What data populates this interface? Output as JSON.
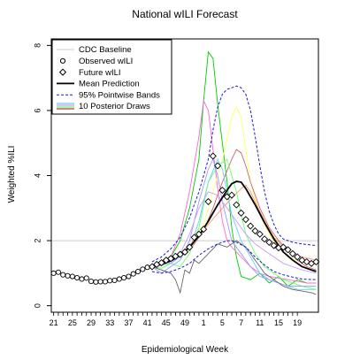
{
  "chart_data": {
    "type": "line",
    "title": "National wILI Forecast",
    "xlabel": "Epidemiological Week",
    "ylabel": "Weighted %ILI",
    "ylim": [
      0,
      8
    ],
    "yticks": [
      0,
      2,
      4,
      6,
      8
    ],
    "xtick_labels": [
      "21",
      "25",
      "29",
      "33",
      "37",
      "41",
      "45",
      "49",
      "1",
      "5",
      "7",
      "11",
      "15",
      "19"
    ],
    "xlim_index": [
      -0.5,
      52.5
    ],
    "baseline": 2.0,
    "legend": {
      "position": "top-left",
      "entries": [
        {
          "label": "CDC Baseline",
          "key": "baseline",
          "color": "#cccccc"
        },
        {
          "label": "Observed wILI",
          "key": "observed",
          "color": "#000000"
        },
        {
          "label": "Future wILI",
          "key": "future",
          "color": "#000000"
        },
        {
          "label": "Mean Prediction",
          "key": "mean",
          "color": "#000000"
        },
        {
          "label": "95% Pointwise Bands",
          "key": "bands",
          "color": "#0000cc"
        },
        {
          "label": "10 Posterior Draws",
          "key": "draws",
          "color": "#cc3333"
        }
      ]
    },
    "observed_wili": [
      [
        0,
        1.0
      ],
      [
        1,
        1.03
      ],
      [
        2,
        0.95
      ],
      [
        3,
        0.92
      ],
      [
        4,
        0.9
      ],
      [
        5,
        0.86
      ],
      [
        6,
        0.82
      ],
      [
        7,
        0.85
      ],
      [
        8,
        0.75
      ],
      [
        9,
        0.73
      ],
      [
        10,
        0.74
      ],
      [
        11,
        0.74
      ],
      [
        12,
        0.77
      ],
      [
        13,
        0.78
      ],
      [
        14,
        0.82
      ],
      [
        15,
        0.86
      ],
      [
        16,
        0.9
      ],
      [
        17,
        0.98
      ],
      [
        18,
        1.05
      ],
      [
        19,
        1.12
      ],
      [
        20,
        1.18
      ]
    ],
    "future_wili": [
      [
        21,
        1.2
      ],
      [
        22,
        1.27
      ],
      [
        23,
        1.32
      ],
      [
        24,
        1.4
      ],
      [
        25,
        1.45
      ],
      [
        26,
        1.52
      ],
      [
        27,
        1.58
      ],
      [
        28,
        1.65
      ],
      [
        29,
        1.8
      ],
      [
        30,
        2.1
      ],
      [
        31,
        2.2
      ],
      [
        32,
        2.35
      ],
      [
        33,
        3.2
      ],
      [
        34,
        4.6
      ],
      [
        35,
        4.3
      ],
      [
        36,
        3.55
      ],
      [
        37,
        3.35
      ],
      [
        38,
        3.4
      ],
      [
        39,
        3.1
      ],
      [
        40,
        2.85
      ],
      [
        41,
        2.65
      ],
      [
        42,
        2.45
      ],
      [
        43,
        2.3
      ],
      [
        44,
        2.2
      ],
      [
        45,
        2.05
      ],
      [
        46,
        1.95
      ],
      [
        47,
        1.85
      ],
      [
        48,
        1.78
      ],
      [
        49,
        1.8
      ],
      [
        50,
        1.72
      ],
      [
        51,
        1.6
      ],
      [
        52,
        1.5
      ],
      [
        53,
        1.4
      ],
      [
        54,
        1.35
      ],
      [
        55,
        1.3
      ],
      [
        56,
        1.35
      ]
    ],
    "mean_prediction": [
      [
        21,
        1.2
      ],
      [
        23,
        1.27
      ],
      [
        25,
        1.38
      ],
      [
        27,
        1.55
      ],
      [
        29,
        1.8
      ],
      [
        31,
        2.15
      ],
      [
        33,
        2.6
      ],
      [
        35,
        3.1
      ],
      [
        37,
        3.55
      ],
      [
        38,
        3.75
      ],
      [
        39,
        3.82
      ],
      [
        40,
        3.8
      ],
      [
        41,
        3.6
      ],
      [
        43,
        3.1
      ],
      [
        45,
        2.55
      ],
      [
        47,
        2.05
      ],
      [
        49,
        1.65
      ],
      [
        51,
        1.4
      ],
      [
        53,
        1.2
      ],
      [
        55,
        1.1
      ],
      [
        56,
        1.05
      ]
    ],
    "band_upper": [
      [
        21,
        1.35
      ],
      [
        23,
        1.5
      ],
      [
        25,
        1.75
      ],
      [
        27,
        2.1
      ],
      [
        29,
        2.7
      ],
      [
        31,
        3.5
      ],
      [
        33,
        4.5
      ],
      [
        34,
        5.4
      ],
      [
        35,
        6.1
      ],
      [
        36,
        6.5
      ],
      [
        37,
        6.65
      ],
      [
        38,
        6.7
      ],
      [
        39,
        6.75
      ],
      [
        40,
        6.7
      ],
      [
        41,
        6.5
      ],
      [
        42,
        6.0
      ],
      [
        43,
        5.2
      ],
      [
        44,
        4.3
      ],
      [
        45,
        3.5
      ],
      [
        46,
        2.9
      ],
      [
        47,
        2.5
      ],
      [
        48,
        2.2
      ],
      [
        49,
        2.05
      ],
      [
        51,
        1.95
      ],
      [
        53,
        1.9
      ],
      [
        56,
        1.85
      ]
    ],
    "band_lower": [
      [
        21,
        1.05
      ],
      [
        23,
        1.0
      ],
      [
        25,
        1.05
      ],
      [
        27,
        1.15
      ],
      [
        29,
        1.3
      ],
      [
        31,
        1.55
      ],
      [
        33,
        1.75
      ],
      [
        35,
        1.9
      ],
      [
        37,
        2.0
      ],
      [
        38,
        2.0
      ],
      [
        39,
        1.95
      ],
      [
        41,
        1.8
      ],
      [
        43,
        1.5
      ],
      [
        45,
        1.25
      ],
      [
        47,
        1.05
      ],
      [
        49,
        0.95
      ],
      [
        51,
        0.88
      ],
      [
        53,
        0.82
      ],
      [
        56,
        0.8
      ]
    ],
    "series": [
      {
        "name": "",
        "color": "#00cc00",
        "values": [
          [
            21,
            1.2
          ],
          [
            23,
            1.3
          ],
          [
            25,
            1.5
          ],
          [
            27,
            2.0
          ],
          [
            29,
            3.0
          ],
          [
            31,
            4.5
          ],
          [
            32,
            6.3
          ],
          [
            33,
            7.8
          ],
          [
            34,
            7.6
          ],
          [
            35,
            6.2
          ],
          [
            36,
            5.0
          ],
          [
            37,
            3.8
          ],
          [
            38,
            2.4
          ],
          [
            39,
            1.5
          ],
          [
            40,
            0.9
          ],
          [
            42,
            0.8
          ],
          [
            44,
            1.0
          ],
          [
            46,
            0.7
          ],
          [
            48,
            0.9
          ],
          [
            50,
            0.6
          ],
          [
            52,
            0.8
          ],
          [
            54,
            0.7
          ],
          [
            56,
            0.7
          ]
        ]
      },
      {
        "name": "",
        "color": "#ff66cc",
        "values": [
          [
            21,
            1.2
          ],
          [
            23,
            1.3
          ],
          [
            25,
            1.5
          ],
          [
            27,
            2.2
          ],
          [
            29,
            3.5
          ],
          [
            31,
            5.2
          ],
          [
            32,
            6.3
          ],
          [
            33,
            6.0
          ],
          [
            34,
            4.8
          ],
          [
            35,
            3.6
          ],
          [
            36,
            2.6
          ],
          [
            37,
            2.0
          ],
          [
            38,
            1.8
          ],
          [
            40,
            1.5
          ],
          [
            42,
            1.2
          ],
          [
            44,
            1.0
          ],
          [
            46,
            0.9
          ],
          [
            48,
            0.85
          ],
          [
            50,
            0.8
          ],
          [
            52,
            0.75
          ],
          [
            54,
            0.7
          ],
          [
            56,
            0.7
          ]
        ]
      },
      {
        "name": "",
        "color": "#ffff66",
        "values": [
          [
            21,
            1.2
          ],
          [
            25,
            1.4
          ],
          [
            29,
            1.8
          ],
          [
            32,
            2.5
          ],
          [
            34,
            3.5
          ],
          [
            36,
            4.5
          ],
          [
            38,
            5.8
          ],
          [
            39,
            6.1
          ],
          [
            40,
            5.8
          ],
          [
            41,
            4.8
          ],
          [
            42,
            3.8
          ],
          [
            44,
            2.8
          ],
          [
            46,
            2.2
          ],
          [
            48,
            1.8
          ],
          [
            50,
            1.5
          ],
          [
            52,
            1.4
          ],
          [
            54,
            1.3
          ],
          [
            56,
            1.3
          ]
        ]
      },
      {
        "name": "",
        "color": "#cc6666",
        "values": [
          [
            21,
            1.2
          ],
          [
            25,
            1.4
          ],
          [
            29,
            1.7
          ],
          [
            32,
            2.3
          ],
          [
            34,
            3.0
          ],
          [
            36,
            3.8
          ],
          [
            38,
            4.5
          ],
          [
            39,
            4.8
          ],
          [
            40,
            4.7
          ],
          [
            41,
            4.3
          ],
          [
            42,
            3.8
          ],
          [
            44,
            3.0
          ],
          [
            46,
            2.4
          ],
          [
            48,
            2.0
          ],
          [
            50,
            1.7
          ],
          [
            52,
            1.4
          ],
          [
            54,
            1.2
          ],
          [
            56,
            1.1
          ]
        ]
      },
      {
        "name": "",
        "color": "#66ccff",
        "values": [
          [
            21,
            1.2
          ],
          [
            25,
            1.3
          ],
          [
            29,
            1.7
          ],
          [
            31,
            2.6
          ],
          [
            33,
            3.8
          ],
          [
            35,
            4.5
          ],
          [
            36,
            4.2
          ],
          [
            37,
            3.5
          ],
          [
            38,
            2.8
          ],
          [
            40,
            2.0
          ],
          [
            42,
            1.5
          ],
          [
            44,
            1.0
          ],
          [
            46,
            0.8
          ],
          [
            48,
            0.7
          ],
          [
            50,
            0.6
          ],
          [
            52,
            0.5
          ],
          [
            54,
            0.5
          ],
          [
            56,
            0.5
          ]
        ]
      },
      {
        "name": "",
        "color": "#66ff66",
        "values": [
          [
            21,
            1.2
          ],
          [
            23,
            1.15
          ],
          [
            25,
            1.3
          ],
          [
            27,
            1.2
          ],
          [
            29,
            1.6
          ],
          [
            31,
            2.4
          ],
          [
            33,
            3.8
          ],
          [
            35,
            4.3
          ],
          [
            37,
            4.5
          ],
          [
            38,
            4.0
          ],
          [
            39,
            3.5
          ],
          [
            40,
            2.8
          ],
          [
            41,
            2.2
          ],
          [
            43,
            1.6
          ],
          [
            45,
            1.2
          ],
          [
            47,
            1.0
          ],
          [
            49,
            0.8
          ],
          [
            51,
            0.7
          ],
          [
            53,
            0.6
          ],
          [
            56,
            0.5
          ]
        ]
      },
      {
        "name": "",
        "color": "#9999ff",
        "values": [
          [
            21,
            1.2
          ],
          [
            23,
            1.0
          ],
          [
            25,
            1.2
          ],
          [
            27,
            1.4
          ],
          [
            29,
            2.0
          ],
          [
            31,
            3.2
          ],
          [
            33,
            4.2
          ],
          [
            34,
            4.5
          ],
          [
            35,
            4.0
          ],
          [
            36,
            3.2
          ],
          [
            37,
            2.6
          ],
          [
            38,
            2.0
          ],
          [
            40,
            1.6
          ],
          [
            42,
            1.2
          ],
          [
            44,
            0.9
          ],
          [
            46,
            0.8
          ],
          [
            48,
            0.7
          ],
          [
            50,
            0.6
          ],
          [
            52,
            0.6
          ],
          [
            56,
            0.6
          ]
        ]
      },
      {
        "name": "",
        "color": "#ff9966",
        "values": [
          [
            21,
            1.2
          ],
          [
            24,
            1.3
          ],
          [
            27,
            1.6
          ],
          [
            30,
            2.0
          ],
          [
            33,
            2.5
          ],
          [
            36,
            3.0
          ],
          [
            38,
            3.3
          ],
          [
            40,
            3.6
          ],
          [
            41,
            3.7
          ],
          [
            42,
            3.5
          ],
          [
            43,
            3.2
          ],
          [
            45,
            2.6
          ],
          [
            47,
            2.1
          ],
          [
            49,
            1.8
          ],
          [
            51,
            1.6
          ],
          [
            53,
            1.5
          ],
          [
            56,
            1.4
          ]
        ]
      },
      {
        "name": "",
        "color": "#666666",
        "values": [
          [
            21,
            1.2
          ],
          [
            23,
            1.1
          ],
          [
            25,
            1.0
          ],
          [
            26,
            0.8
          ],
          [
            27,
            0.4
          ],
          [
            28,
            1.1
          ],
          [
            29,
            1.0
          ],
          [
            30,
            1.4
          ],
          [
            31,
            1.3
          ],
          [
            33,
            1.6
          ],
          [
            35,
            1.9
          ],
          [
            37,
            1.8
          ],
          [
            39,
            2.0
          ],
          [
            41,
            1.8
          ],
          [
            43,
            1.4
          ],
          [
            45,
            1.0
          ],
          [
            47,
            0.8
          ],
          [
            49,
            0.6
          ],
          [
            51,
            0.5
          ],
          [
            53,
            0.45
          ],
          [
            55,
            0.4
          ],
          [
            56,
            0.35
          ]
        ]
      },
      {
        "name": "",
        "color": "#cc99ff",
        "values": [
          [
            21,
            1.2
          ],
          [
            23,
            1.4
          ],
          [
            25,
            1.3
          ],
          [
            27,
            1.6
          ],
          [
            29,
            2.2
          ],
          [
            31,
            3.0
          ],
          [
            33,
            3.5
          ],
          [
            35,
            3.4
          ],
          [
            37,
            3.0
          ],
          [
            39,
            2.6
          ],
          [
            41,
            2.2
          ],
          [
            43,
            1.9
          ],
          [
            45,
            1.7
          ],
          [
            47,
            1.5
          ],
          [
            49,
            1.3
          ],
          [
            51,
            1.2
          ],
          [
            53,
            1.1
          ],
          [
            56,
            1.0
          ]
        ]
      }
    ]
  }
}
